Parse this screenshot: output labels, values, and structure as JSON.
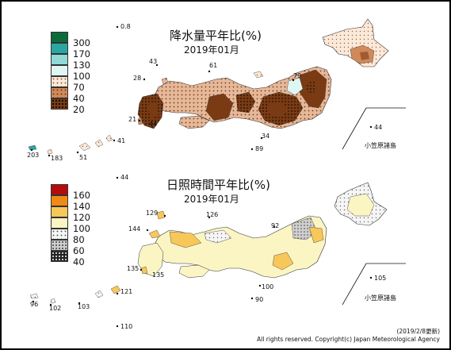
{
  "precip_map": {
    "title": "降水量平年比(%)",
    "subtitle": "2019年01月",
    "legend": [
      "300",
      "170",
      "130",
      "100",
      "70",
      "40",
      "20"
    ],
    "legend_colors": [
      "#0b6b3b",
      "#2aa7a3",
      "#8fdad6",
      "#dff7f3",
      "#fbe9d9",
      "#d08a5a",
      "#7a3b14"
    ],
    "station_values": [
      "0.8",
      "43",
      "61",
      "79",
      "28",
      "21",
      "44",
      "34",
      "89",
      "41",
      "51",
      "203",
      "183",
      "44"
    ],
    "inset_label": "小笠原諸島"
  },
  "sunshine_map": {
    "title": "日照時間平年比(%)",
    "subtitle": "2019年01月",
    "legend": [
      "160",
      "140",
      "120",
      "100",
      "80",
      "60",
      "40"
    ],
    "legend_colors": [
      "#b50d0d",
      "#f08a16",
      "#f8c75a",
      "#fbf5c3",
      "#f5f5f5",
      "#cfcfcf",
      "#595959"
    ],
    "station_values": [
      "44",
      "129",
      "126",
      "92",
      "144",
      "135",
      "135",
      "100",
      "90",
      "121",
      "96",
      "102",
      "103",
      "110",
      "105"
    ],
    "inset_label": "小笠原諸島"
  },
  "footer": {
    "date": "(2019/2/8更新)",
    "copyright": "All rights reserved. Copyright(c) Japan Meteorological Agency"
  }
}
